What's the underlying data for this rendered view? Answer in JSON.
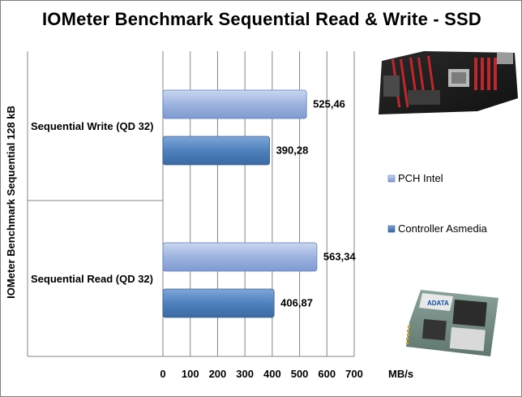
{
  "chart_data": {
    "type": "bar",
    "orientation": "horizontal",
    "title": "IOMeter Benchmark Sequential Read & Write - SSD",
    "ylabel": "IOMeter Benchmark Sequential 128 kB",
    "xlabel": "MB/s",
    "xlim": [
      0,
      700
    ],
    "xticks": [
      "0",
      "100",
      "200",
      "300",
      "400",
      "500",
      "600",
      "700"
    ],
    "categories": [
      "Sequential Write (QD 32)",
      "Sequential Read (QD 32)"
    ],
    "series": [
      {
        "name": "PCH Intel",
        "values": [
          525.46,
          563.34
        ],
        "labels": [
          "525,46",
          "563,34"
        ],
        "color": "#8ea9db"
      },
      {
        "name": "Controller Asmedia",
        "values": [
          390.28,
          406.87
        ],
        "labels": [
          "390,28",
          "406,87"
        ],
        "color": "#4f81bd"
      }
    ],
    "grid": true,
    "legend_position": "right"
  },
  "images": {
    "top_right": "motherboard-photo",
    "bottom_right": "ssd-module-photo",
    "ssd_brand": "ADATA"
  }
}
